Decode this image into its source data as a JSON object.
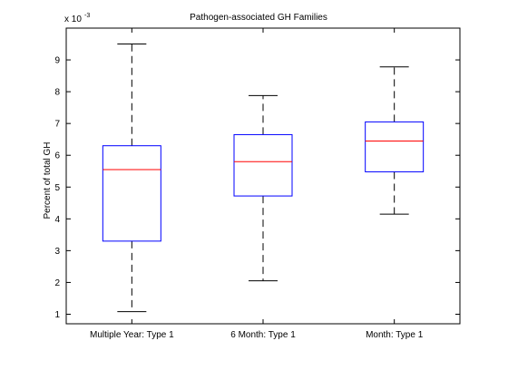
{
  "chart_data": {
    "type": "boxplot",
    "title": "Pathogen-associated GH Families",
    "ylabel": "Percent of total GH",
    "y_multiplier": {
      "base": "x 10",
      "exponent": "-3"
    },
    "ylim": [
      0.7,
      10.0
    ],
    "yticks": [
      1,
      2,
      3,
      4,
      5,
      6,
      7,
      8,
      9
    ],
    "categories": [
      "Multiple Year: Type 1",
      "6 Month: Type 1",
      "Month: Type 1"
    ],
    "boxes": [
      {
        "category": "Multiple Year: Type 1",
        "whisker_low": 1.08,
        "q1": 3.3,
        "median": 5.55,
        "q3": 6.3,
        "whisker_high": 9.5
      },
      {
        "category": "6 Month: Type 1",
        "whisker_low": 2.05,
        "q1": 4.72,
        "median": 5.8,
        "q3": 6.65,
        "whisker_high": 7.88
      },
      {
        "category": "Month: Type 1",
        "whisker_low": 4.15,
        "q1": 5.48,
        "median": 6.45,
        "q3": 7.05,
        "whisker_high": 8.78
      }
    ],
    "colors": {
      "box": "#0000ff",
      "median": "#ff0000",
      "whisker": "#000000"
    }
  }
}
